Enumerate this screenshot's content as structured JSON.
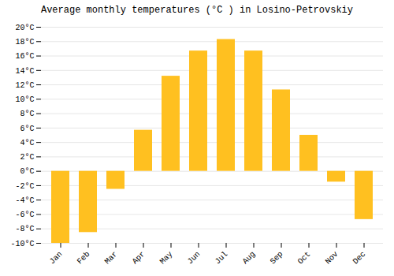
{
  "chart_data": {
    "type": "bar",
    "title": "Average monthly temperatures (°C ) in Losino-Petrovskiy",
    "categories": [
      "Jan",
      "Feb",
      "Mar",
      "Apr",
      "May",
      "Jun",
      "Jul",
      "Aug",
      "Sep",
      "Oct",
      "Nov",
      "Dec"
    ],
    "values": [
      -10,
      -8.5,
      -2.5,
      5.7,
      13.2,
      16.7,
      18.3,
      16.7,
      11.3,
      5.0,
      -1.5,
      -6.7
    ],
    "color": "#FFC020",
    "ylim": [
      -10,
      20
    ],
    "yticks": [
      {
        "value": -10,
        "label": "-10°C"
      },
      {
        "value": -8,
        "label": "-8°C"
      },
      {
        "value": -6,
        "label": "-6°C"
      },
      {
        "value": -4,
        "label": "-4°C"
      },
      {
        "value": -2,
        "label": "-2°C"
      },
      {
        "value": 0,
        "label": "0°C"
      },
      {
        "value": 2,
        "label": "2°C"
      },
      {
        "value": 4,
        "label": "4°C"
      },
      {
        "value": 6,
        "label": "6°C"
      },
      {
        "value": 8,
        "label": "8°C"
      },
      {
        "value": 10,
        "label": "10°C"
      },
      {
        "value": 12,
        "label": "12°C"
      },
      {
        "value": 14,
        "label": "14°C"
      },
      {
        "value": 16,
        "label": "16°C"
      },
      {
        "value": 18,
        "label": "18°C"
      },
      {
        "value": 20,
        "label": "20°C"
      }
    ],
    "grid": true
  }
}
